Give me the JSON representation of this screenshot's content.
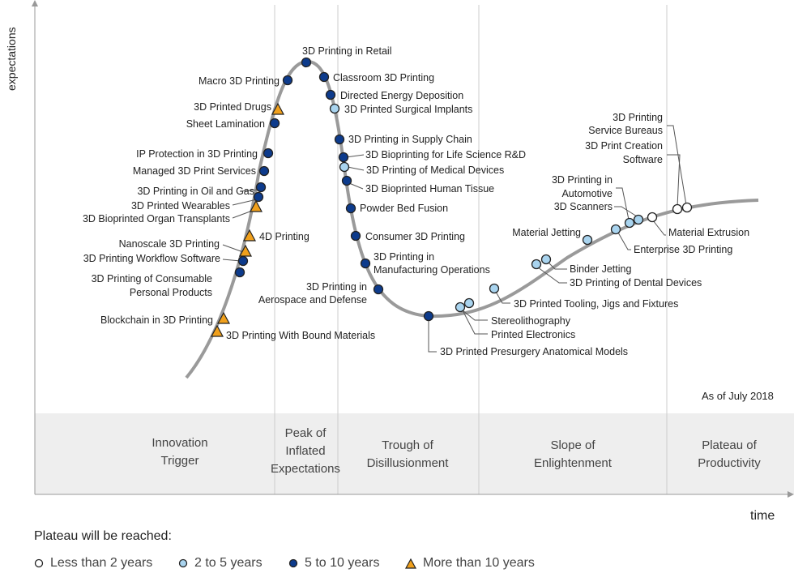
{
  "axes": {
    "y_label": "expectations",
    "x_label": "time"
  },
  "as_of": "As of July 2018",
  "phases": [
    {
      "id": "innovation-trigger",
      "label": "Innovation\nTrigger"
    },
    {
      "id": "peak",
      "label": "Peak of\nInflated\nExpectations"
    },
    {
      "id": "trough",
      "label": "Trough of\nDisillusionment"
    },
    {
      "id": "slope",
      "label": "Slope of\nEnlightenment"
    },
    {
      "id": "plateau",
      "label": "Plateau of\nProductivity"
    }
  ],
  "legend": {
    "title": "Plateau will be reached:",
    "items": [
      {
        "key": "lt2",
        "label": "Less than 2 years"
      },
      {
        "key": "2to5",
        "label": "2 to 5 years"
      },
      {
        "key": "5to10",
        "label": "5 to 10 years"
      },
      {
        "key": "gt10",
        "label": "More than 10 years"
      }
    ]
  },
  "colors": {
    "curve": "#9a9a9a",
    "lt2": "#ffffff",
    "2to5": "#a9d4ef",
    "5to10": "#0d3b8c",
    "gt10": "#f0a01c",
    "phase_band": "#eeeeee",
    "divider": "#cccccc"
  },
  "technologies": [
    {
      "name": "3D Printing in Retail",
      "category": "5to10"
    },
    {
      "name": "Macro 3D Printing",
      "category": "5to10"
    },
    {
      "name": "Classroom 3D Printing",
      "category": "5to10"
    },
    {
      "name": "Directed Energy Deposition",
      "category": "5to10"
    },
    {
      "name": "3D Printed Surgical Implants",
      "category": "2to5"
    },
    {
      "name": "3D Printed Drugs",
      "category": "gt10"
    },
    {
      "name": "Sheet Lamination",
      "category": "5to10"
    },
    {
      "name": "3D Printing in Supply Chain",
      "category": "5to10"
    },
    {
      "name": "3D Bioprinting for Life Science R&D",
      "category": "5to10"
    },
    {
      "name": "3D Printing of Medical Devices",
      "category": "2to5"
    },
    {
      "name": "IP Protection in 3D Printing",
      "category": "5to10"
    },
    {
      "name": "Managed 3D Print Services",
      "category": "5to10"
    },
    {
      "name": "3D Bioprinted Human Tissue",
      "category": "5to10"
    },
    {
      "name": "3D Printing in Oil and Gas",
      "category": "5to10"
    },
    {
      "name": "3D Printed Wearables",
      "category": "5to10"
    },
    {
      "name": "3D Bioprinted Organ Transplants",
      "category": "gt10"
    },
    {
      "name": "Powder Bed Fusion",
      "category": "5to10"
    },
    {
      "name": "4D Printing",
      "category": "gt10"
    },
    {
      "name": "Consumer 3D Printing",
      "category": "5to10"
    },
    {
      "name": "Nanoscale 3D Printing",
      "category": "gt10"
    },
    {
      "name": "3D Printing Workflow Software",
      "category": "5to10"
    },
    {
      "name": "3D Printing in Manufacturing Operations",
      "category": "5to10"
    },
    {
      "name": "3D Printing of Consumable Personal Products",
      "category": "5to10"
    },
    {
      "name": "3D Printing in Aerospace and Defense",
      "category": "5to10"
    },
    {
      "name": "Blockchain in 3D Printing",
      "category": "gt10"
    },
    {
      "name": "3D Printing With Bound Materials",
      "category": "gt10"
    },
    {
      "name": "3D Printed Presurgery Anatomical Models",
      "category": "5to10"
    },
    {
      "name": "Stereolithography",
      "category": "2to5"
    },
    {
      "name": "Printed Electronics",
      "category": "2to5"
    },
    {
      "name": "3D Printed Tooling, Jigs and Fixtures",
      "category": "2to5"
    },
    {
      "name": "Binder Jetting",
      "category": "2to5"
    },
    {
      "name": "3D Printing of Dental Devices",
      "category": "2to5"
    },
    {
      "name": "Material Jetting",
      "category": "2to5"
    },
    {
      "name": "3D Printing in Automotive",
      "category": "2to5"
    },
    {
      "name": "3D Scanners",
      "category": "2to5"
    },
    {
      "name": "Enterprise 3D Printing",
      "category": "2to5"
    },
    {
      "name": "3D Print Creation Software",
      "category": "lt2"
    },
    {
      "name": "3D Printing Service Bureaus",
      "category": "lt2"
    },
    {
      "name": "Material Extrusion",
      "category": "lt2"
    }
  ]
}
